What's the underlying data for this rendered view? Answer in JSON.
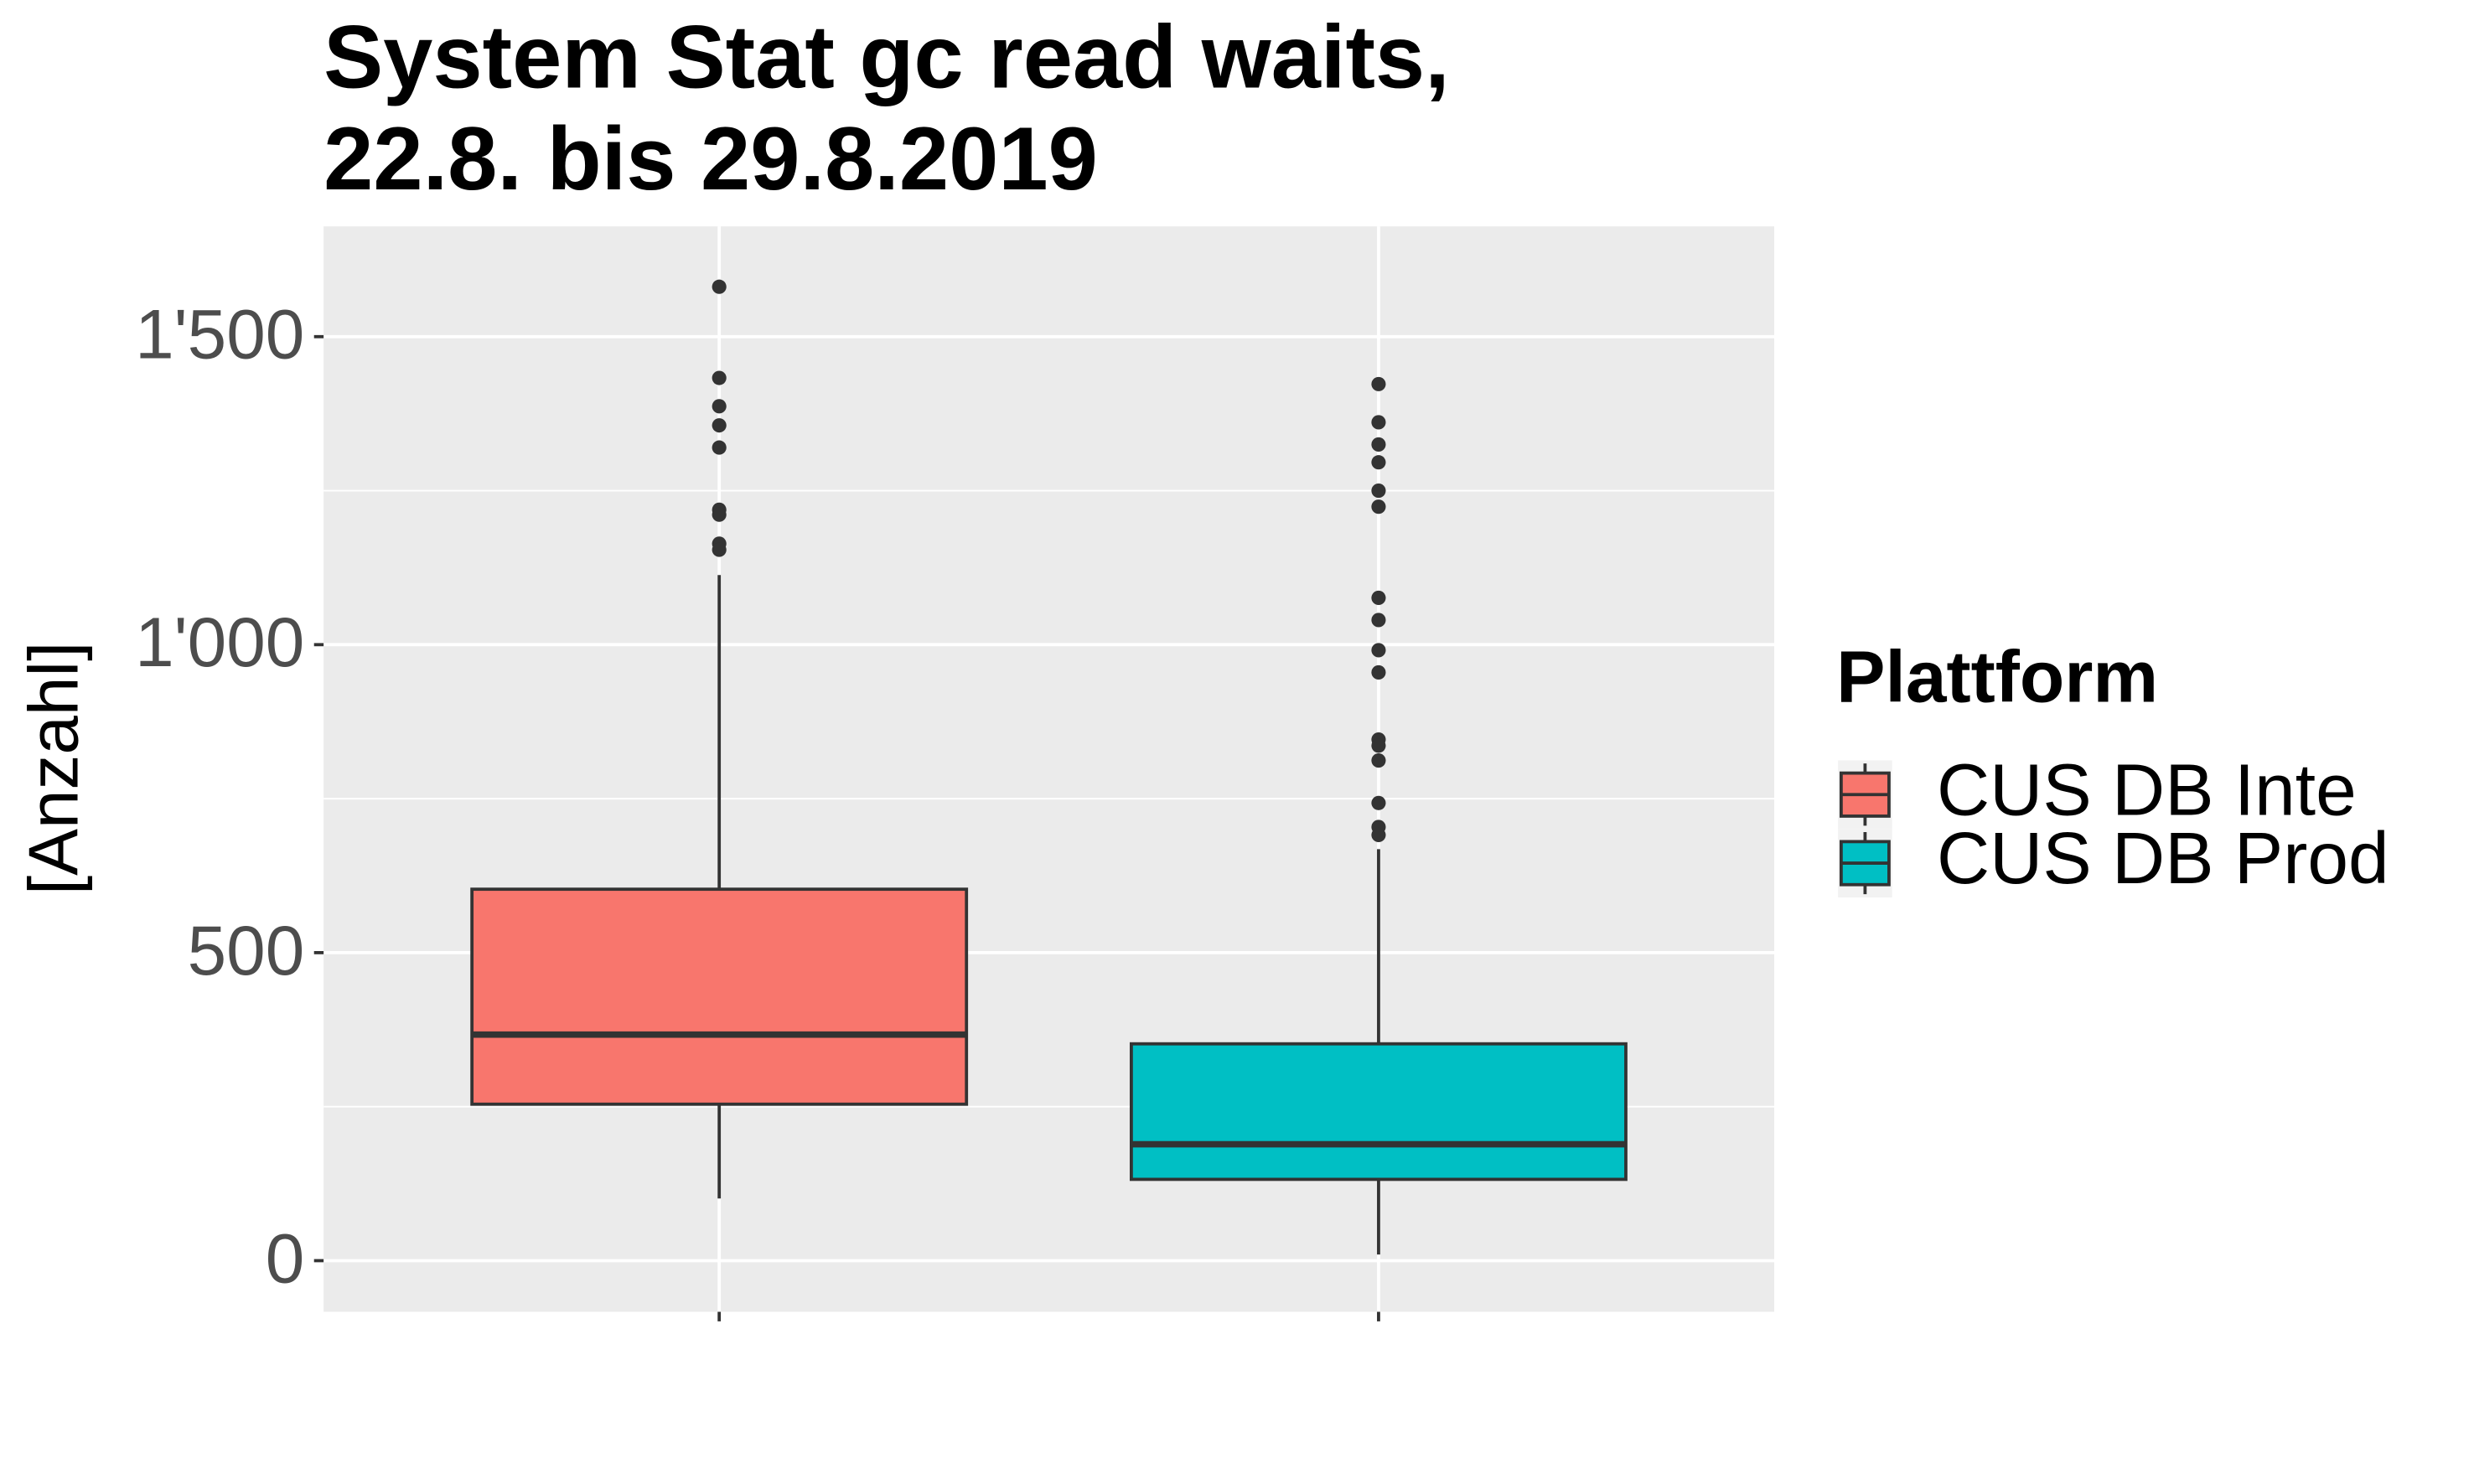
{
  "chart_data": {
    "type": "boxplot",
    "title": "System Stat gc read waits,",
    "subtitle": "22.8. bis 29.8.2019",
    "y_label": "[Anzahl]",
    "legend_title": "Plattform",
    "legend_position": "right",
    "categories": [
      null,
      null
    ],
    "ylim": [
      -83,
      1679
    ],
    "yticks": [
      0,
      500,
      {
        "value": 1000,
        "label": "1'000"
      },
      {
        "value": 1500,
        "label": "1'500"
      }
    ],
    "y_minor_grid": [
      250,
      750,
      1250
    ],
    "grid": true,
    "series": [
      {
        "name": "CUS DB Inte",
        "color": "#F8766D",
        "whisker_low": 101,
        "q1": 254,
        "median": 367,
        "q3": 603,
        "whisker_high": 1113,
        "outliers": [
          1581,
          1433,
          1387,
          1356,
          1320,
          1219,
          1211,
          1164,
          1154
        ]
      },
      {
        "name": "CUS DB Prod",
        "color": "#00BFC4",
        "whisker_low": 10,
        "q1": 132,
        "median": 189,
        "q3": 352,
        "whisker_high": 668,
        "outliers": [
          1423,
          1361,
          1325,
          1296,
          1250,
          1224,
          1076,
          1040,
          991,
          955,
          846,
          836,
          812,
          743,
          704,
          691
        ]
      }
    ]
  }
}
